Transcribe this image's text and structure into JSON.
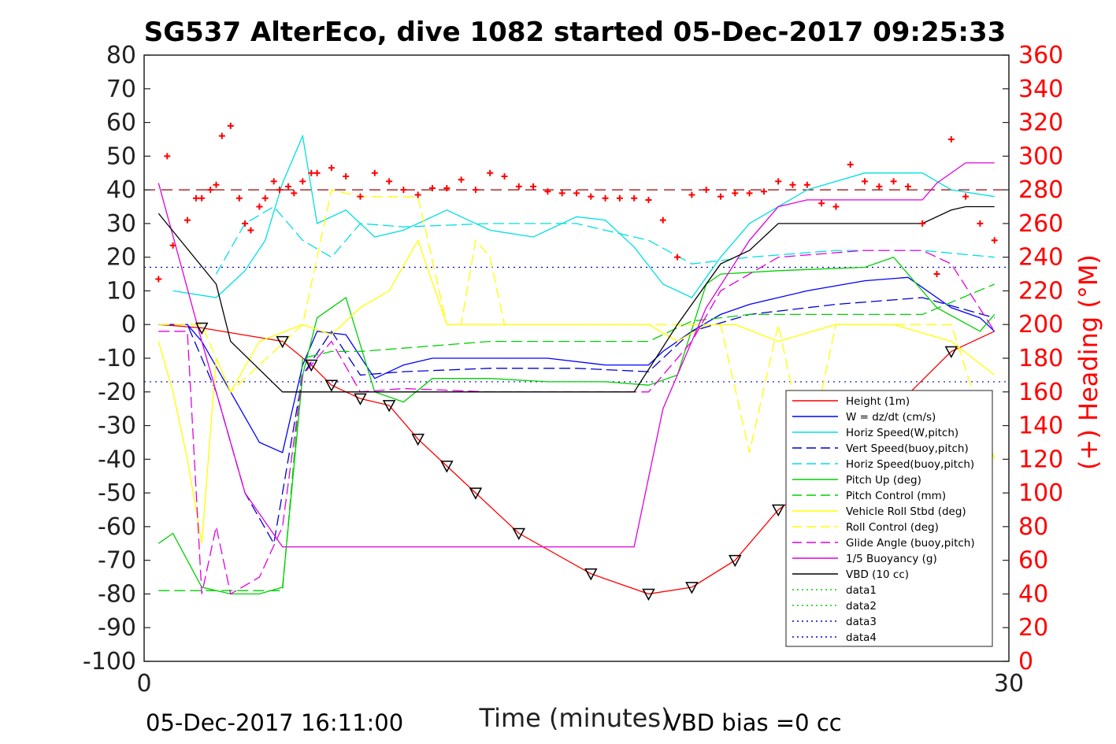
{
  "chart_data": {
    "type": "line",
    "title": "SG537 AlterEco, dive 1082 started 05-Dec-2017 09:25:33",
    "xlabel": "Time (minutes)",
    "ylabel_right": "(+) Heading (°M)",
    "xlim": [
      0,
      30
    ],
    "ylim": [
      -100,
      80
    ],
    "ylim_right": [
      0,
      360
    ],
    "x_ticks": [
      "0",
      "30"
    ],
    "y_ticks": [
      "80",
      "70",
      "60",
      "50",
      "40",
      "30",
      "20",
      "10",
      "0",
      "-10",
      "-20",
      "-30",
      "-40",
      "-50",
      "-60",
      "-70",
      "-80",
      "-90",
      "-100"
    ],
    "y_ticks_right": [
      "360",
      "340",
      "320",
      "300",
      "280",
      "260",
      "240",
      "220",
      "200",
      "180",
      "160",
      "140",
      "120",
      "100",
      "80",
      "60",
      "40",
      "20",
      "0"
    ],
    "footer_left": "05-Dec-2017 16:11:00",
    "footer_right": "VBD bias =0 cc",
    "legend_position": "bottom-right",
    "grid": false,
    "legend": [
      {
        "name": "Height (1m)",
        "color": "#ff0000",
        "style": "solid"
      },
      {
        "name": "W = dz/dt (cm/s)",
        "color": "#0000ff",
        "style": "solid"
      },
      {
        "name": "Horiz Speed(W,pitch)",
        "color": "#00e0e0",
        "style": "solid"
      },
      {
        "name": "Vert Speed(buoy,pitch)",
        "color": "#0000cc",
        "style": "dashed"
      },
      {
        "name": "Horiz Speed(buoy,pitch)",
        "color": "#00e0e0",
        "style": "dashed"
      },
      {
        "name": "Pitch Up (deg)",
        "color": "#00d000",
        "style": "solid"
      },
      {
        "name": "Pitch Control (mm)",
        "color": "#00d000",
        "style": "dashed"
      },
      {
        "name": "Vehicle Roll Stbd (deg)",
        "color": "#ffff00",
        "style": "solid"
      },
      {
        "name": "Roll Control (deg)",
        "color": "#ffff00",
        "style": "dashed"
      },
      {
        "name": "Glide Angle (buoy,pitch)",
        "color": "#e000e0",
        "style": "dashed"
      },
      {
        "name": "1/5 Buoyancy (g)",
        "color": "#e000e0",
        "style": "solid"
      },
      {
        "name": "VBD (10 cc)",
        "color": "#000000",
        "style": "solid"
      },
      {
        "name": "data1",
        "color": "#00d000",
        "style": "dotted"
      },
      {
        "name": "data2",
        "color": "#00d000",
        "style": "dotted"
      },
      {
        "name": "data3",
        "color": "#0000cc",
        "style": "dotted"
      },
      {
        "name": "data4",
        "color": "#0000cc",
        "style": "dotted"
      }
    ],
    "series": [
      {
        "name": "Height (1m)",
        "color": "#ff0000",
        "style": "solid",
        "x": [
          0.5,
          2.0,
          4.8,
          5.8,
          6.5,
          7.5,
          8.5,
          9.5,
          10.5,
          11.5,
          13.0,
          15.5,
          17.5,
          19.0,
          20.5,
          22.0,
          24.5,
          26.0,
          28.0,
          29.5
        ],
        "y": [
          0,
          -1,
          -5,
          -12,
          -18,
          -22,
          -24,
          -34,
          -42,
          -50,
          -62,
          -74,
          -80,
          -78,
          -70,
          -55,
          -40,
          -25,
          -8,
          -2
        ]
      },
      {
        "name": "W = dz/dt (cm/s)",
        "color": "#0000ff",
        "style": "solid",
        "x": [
          0.5,
          1.5,
          2.0,
          3.0,
          4.0,
          4.8,
          5.5,
          6.0,
          7.0,
          8.0,
          9.0,
          10.0,
          12.0,
          14.0,
          16.0,
          17.5,
          18.0,
          19.0,
          20.0,
          21.0,
          23.0,
          25.0,
          26.5,
          28.0,
          29.0,
          29.5
        ],
        "y": [
          0,
          0,
          -5,
          -20,
          -35,
          -38,
          -12,
          -2,
          -3,
          -16,
          -12,
          -10,
          -10,
          -10,
          -12,
          -12,
          -8,
          -2,
          3,
          6,
          10,
          13,
          14,
          5,
          2,
          -2
        ]
      },
      {
        "name": "Horiz Speed(W,pitch)",
        "color": "#00e0e0",
        "style": "solid",
        "x": [
          1.0,
          2.5,
          3.5,
          4.2,
          4.8,
          5.5,
          6.0,
          7.0,
          8.0,
          9.0,
          10.5,
          12.0,
          13.5,
          15.0,
          16.0,
          17.0,
          18.0,
          19.0,
          20.0,
          21.0,
          23.0,
          25.0,
          27.0,
          28.0,
          29.5
        ],
        "y": [
          10,
          8,
          16,
          25,
          42,
          56,
          30,
          34,
          26,
          28,
          34,
          28,
          26,
          32,
          31,
          23,
          12,
          8,
          20,
          30,
          40,
          45,
          45,
          40,
          38
        ]
      },
      {
        "name": "Vert Speed(buoy,pitch)",
        "color": "#0000cc",
        "style": "dashed",
        "x": [
          0.5,
          1.5,
          2.5,
          3.5,
          4.5,
          5.5,
          6.5,
          7.5,
          9.0,
          12.0,
          15.0,
          17.5,
          19.0,
          21.0,
          24.0,
          27.0,
          29.5
        ],
        "y": [
          0,
          0,
          -20,
          -50,
          -65,
          -15,
          -2,
          -15,
          -14,
          -13,
          -13,
          -14,
          -2,
          3,
          6,
          8,
          2
        ]
      },
      {
        "name": "Horiz Speed(buoy,pitch)",
        "color": "#00e0e0",
        "style": "dashed",
        "x": [
          2.5,
          3.5,
          4.5,
          5.5,
          6.5,
          7.5,
          9.0,
          12.0,
          15.0,
          17.5,
          19.0,
          21.0,
          24.0,
          27.0,
          29.5
        ],
        "y": [
          15,
          30,
          35,
          25,
          20,
          30,
          29,
          30,
          30,
          25,
          18,
          20,
          22,
          22,
          20
        ]
      },
      {
        "name": "Pitch Up (deg)",
        "color": "#00d000",
        "style": "solid",
        "x": [
          0.5,
          1.0,
          1.5,
          2.0,
          3.0,
          4.0,
          4.8,
          5.5,
          6.0,
          7.0,
          8.0,
          9.0,
          10.0,
          12.0,
          14.0,
          16.0,
          17.5,
          18.5,
          19.5,
          20.0,
          22.0,
          25.0,
          26.0,
          27.5,
          29.0,
          29.5
        ],
        "y": [
          -65,
          -62,
          -70,
          -78,
          -80,
          -80,
          -78,
          -15,
          2,
          8,
          -20,
          -23,
          -16,
          -16,
          -17,
          -17,
          -18,
          -15,
          12,
          15,
          16,
          17,
          20,
          5,
          -2,
          3
        ]
      },
      {
        "name": "Pitch Control (mm)",
        "color": "#00d000",
        "style": "dashed",
        "x": [
          0.5,
          4.8,
          5.5,
          6.5,
          7.5,
          9.0,
          12.0,
          15.0,
          17.5,
          19.0,
          21.0,
          24.0,
          27.0,
          29.5
        ],
        "y": [
          -79,
          -79,
          -10,
          -8,
          -8,
          -7,
          -5,
          -5,
          -5,
          1,
          3,
          3,
          3,
          12
        ]
      },
      {
        "name": "Vehicle Roll Stbd (deg)",
        "color": "#ffff00",
        "style": "solid",
        "x": [
          0.5,
          1.0,
          1.5,
          2.0,
          2.5,
          3.0,
          4.0,
          5.5,
          6.5,
          7.5,
          8.5,
          9.5,
          10.5,
          11.5,
          12.5,
          14.0,
          16.0,
          17.5,
          18.5,
          19.5,
          20.5,
          22.0,
          24.0,
          26.0,
          28.0,
          29.5
        ],
        "y": [
          -5,
          -20,
          -40,
          -65,
          -10,
          -20,
          -5,
          0,
          -3,
          5,
          10,
          25,
          0,
          0,
          0,
          0,
          0,
          0,
          -5,
          0,
          0,
          -5,
          0,
          0,
          -5,
          -15
        ]
      },
      {
        "name": "Roll Control (deg)",
        "color": "#ffff00",
        "style": "dashed",
        "x": [
          0.5,
          2.0,
          3.0,
          5.5,
          6.5,
          7.5,
          9.5,
          10.5,
          11.0,
          11.5,
          12.0,
          12.5,
          14.5,
          15.5,
          16.0,
          20.0,
          21.0,
          22.0,
          23.0,
          24.0,
          26.0,
          28.0,
          29.5
        ],
        "y": [
          0,
          0,
          -20,
          0,
          40,
          38,
          38,
          0,
          0,
          25,
          20,
          0,
          0,
          0,
          0,
          0,
          -38,
          0,
          -40,
          0,
          0,
          0,
          -40
        ]
      },
      {
        "name": "Glide Angle (buoy,pitch)",
        "color": "#e000e0",
        "style": "dashed",
        "x": [
          0.5,
          1.5,
          2.0,
          2.5,
          3.0,
          4.0,
          4.8,
          5.5,
          6.5,
          7.5,
          9.0,
          12.0,
          15.0,
          17.5,
          19.0,
          20.0,
          22.0,
          25.0,
          27.0,
          28.0,
          29.5
        ],
        "y": [
          -2,
          -2,
          -80,
          -60,
          -80,
          -75,
          -60,
          -15,
          -5,
          -20,
          -19,
          -20,
          -20,
          -20,
          -5,
          10,
          20,
          22,
          22,
          18,
          -2
        ]
      },
      {
        "name": "1/5 Buoyancy (g)",
        "color": "#e000e0",
        "style": "solid",
        "x": [
          0.5,
          2.0,
          3.5,
          4.8,
          12.0,
          17.0,
          18.0,
          19.5,
          21.0,
          22.0,
          23.0,
          25.0,
          27.0,
          27.5,
          28.5,
          29.5
        ],
        "y": [
          42,
          -5,
          -50,
          -66,
          -66,
          -66,
          -25,
          5,
          25,
          35,
          37,
          37,
          37,
          42,
          48,
          48
        ]
      },
      {
        "name": "VBD (10 cc)",
        "color": "#000000",
        "style": "solid",
        "x": [
          0.5,
          2.5,
          3.0,
          4.8,
          8.0,
          12.0,
          17.0,
          18.5,
          20.0,
          21.0,
          22.0,
          23.0,
          25.0,
          27.0,
          28.0,
          28.5,
          29.5
        ],
        "y": [
          33,
          12,
          -5,
          -20,
          -20,
          -20,
          -20,
          0,
          18,
          22,
          30,
          30,
          30,
          30,
          34,
          35,
          35
        ]
      }
    ],
    "reference_lines": [
      {
        "name": "data3",
        "y": 17,
        "color": "#0000cc",
        "style": "dotted"
      },
      {
        "name": "data4",
        "y": -17,
        "color": "#0000cc",
        "style": "dotted"
      },
      {
        "name": "heading-mean",
        "y_right": 280,
        "color": "#990000",
        "style": "dashed"
      }
    ],
    "heading_points_right_axis": {
      "x": [
        0.5,
        0.8,
        1.0,
        1.5,
        1.8,
        2.0,
        2.3,
        2.5,
        2.7,
        3.0,
        3.3,
        3.5,
        3.7,
        4.0,
        4.2,
        4.5,
        4.7,
        5.0,
        5.2,
        5.5,
        5.8,
        6.0,
        6.5,
        7.0,
        7.5,
        8.0,
        8.5,
        9.0,
        9.5,
        10.0,
        10.5,
        11.0,
        11.5,
        12.0,
        12.5,
        13.0,
        13.5,
        14.0,
        14.5,
        15.0,
        15.5,
        16.0,
        16.5,
        17.0,
        17.5,
        18.0,
        18.5,
        19.0,
        19.5,
        20.0,
        20.5,
        21.0,
        21.5,
        22.0,
        22.5,
        23.0,
        23.5,
        24.0,
        24.5,
        25.0,
        25.5,
        26.0,
        26.5,
        27.0,
        27.5,
        28.0,
        28.5,
        29.0,
        29.5
      ],
      "y": [
        227,
        300,
        247,
        262,
        275,
        275,
        280,
        283,
        312,
        318,
        275,
        260,
        256,
        270,
        275,
        285,
        280,
        282,
        278,
        285,
        290,
        290,
        293,
        288,
        276,
        290,
        285,
        280,
        277,
        281,
        281,
        286,
        280,
        290,
        288,
        282,
        282,
        279,
        278,
        278,
        276,
        275,
        275,
        275,
        274,
        262,
        240,
        277,
        280,
        276,
        278,
        278,
        279,
        285,
        283,
        283,
        272,
        270,
        295,
        285,
        282,
        285,
        282,
        260,
        230,
        310,
        276,
        260,
        250
      ]
    }
  }
}
